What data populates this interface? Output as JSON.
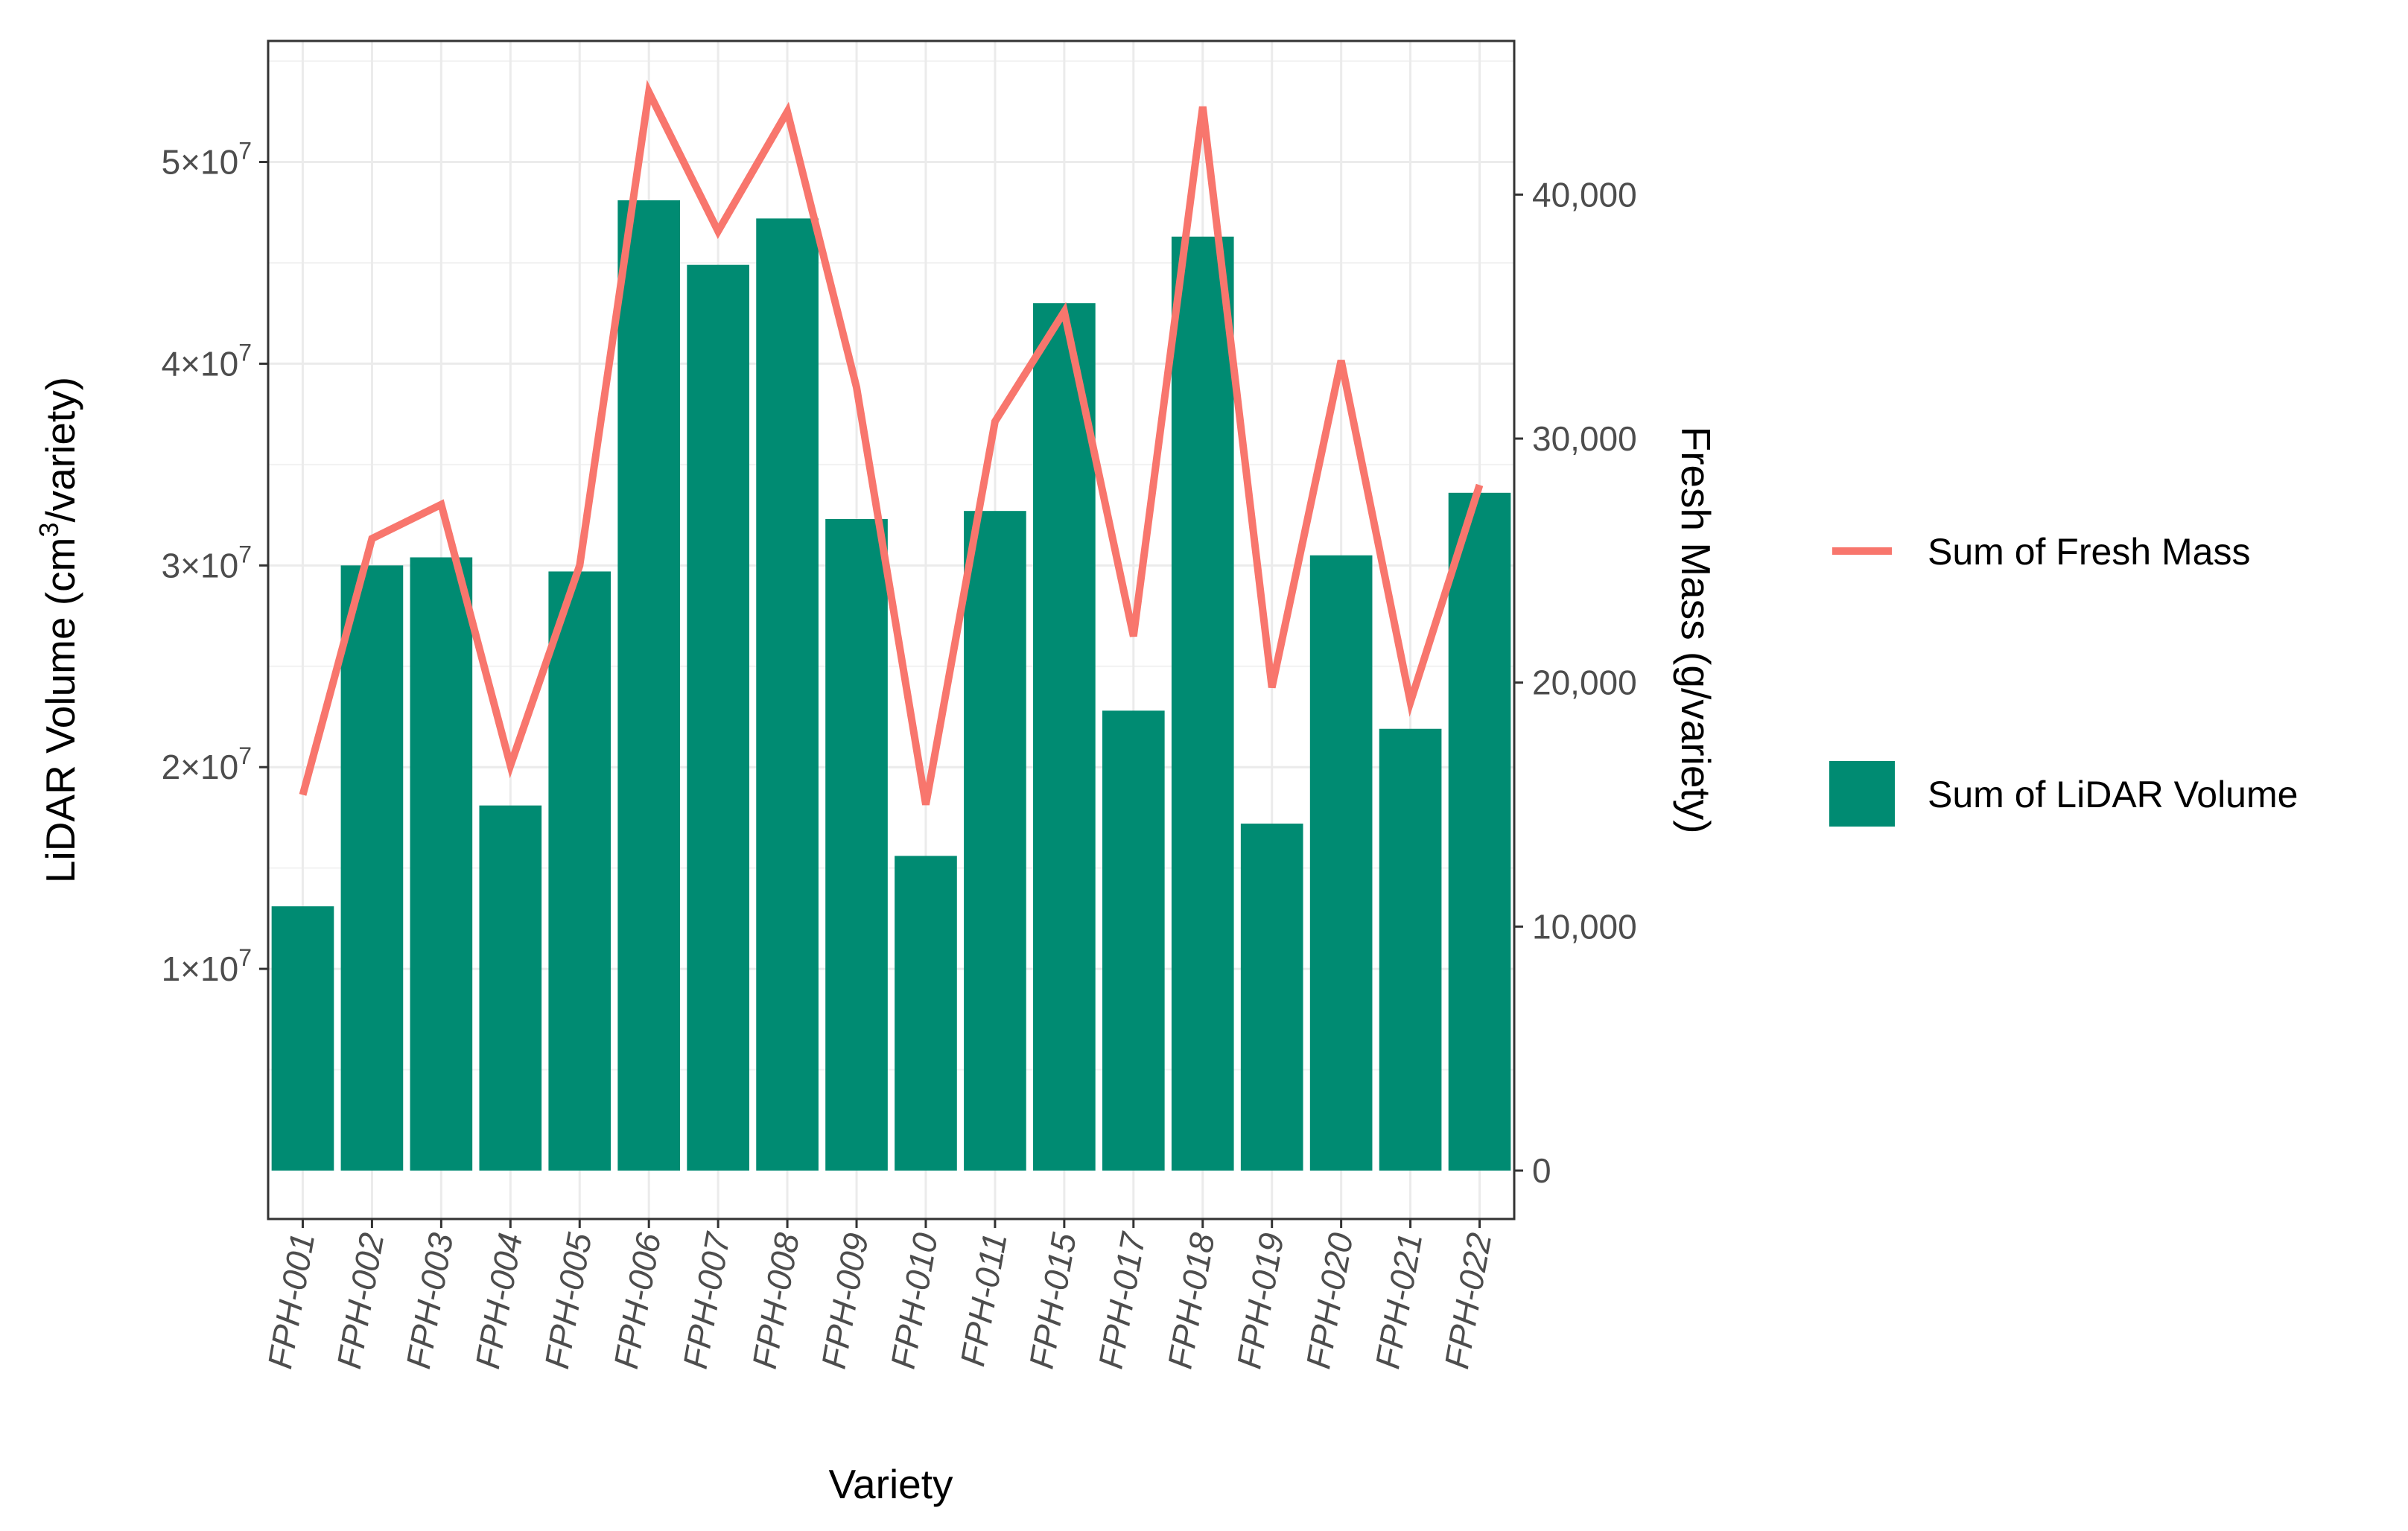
{
  "chart_data": {
    "type": "bar+line",
    "xlabel": "Variety",
    "ylabel_left_prefix": "LiDAR Volume (cm",
    "ylabel_left_sup": "3",
    "ylabel_left_suffix": "/variety)",
    "ylabel_right": "Fresh Mass (g/variety)",
    "categories": [
      "FPH-001",
      "FPH-002",
      "FPH-003",
      "FPH-004",
      "FPH-005",
      "FPH-006",
      "FPH-007",
      "FPH-008",
      "FPH-009",
      "FPH-010",
      "FPH-011",
      "FPH-015",
      "FPH-017",
      "FPH-018",
      "FPH-019",
      "FPH-020",
      "FPH-021",
      "FPH-022"
    ],
    "series": [
      {
        "name": "Sum of LiDAR Volume",
        "kind": "bar",
        "axis": "left",
        "color": "#008B72",
        "values": [
          13100000,
          30000000,
          30400000,
          18100000,
          29700000,
          48100000,
          44900000,
          47200000,
          32300000,
          15600000,
          32700000,
          43000000,
          22800000,
          46300000,
          17200000,
          30500000,
          21900000,
          33600000
        ]
      },
      {
        "name": "Sum of Fresh Mass",
        "kind": "line",
        "axis": "right",
        "color": "#F8766D",
        "values": [
          15400,
          25900,
          27300,
          16600,
          24800,
          44200,
          38500,
          43400,
          32100,
          15000,
          30700,
          35200,
          21900,
          43600,
          19800,
          33200,
          19200,
          28100
        ]
      }
    ],
    "ylim_left": [
      -2400000,
      56000000
    ],
    "yticks_left": [
      {
        "value": 10000000,
        "mant": "1",
        "exp": "7"
      },
      {
        "value": 20000000,
        "mant": "2",
        "exp": "7"
      },
      {
        "value": 30000000,
        "mant": "3",
        "exp": "7"
      },
      {
        "value": 40000000,
        "mant": "4",
        "exp": "7"
      },
      {
        "value": 50000000,
        "mant": "5",
        "exp": "7"
      }
    ],
    "ytick_times": "×10",
    "ylim_right": [
      -1984,
      46297
    ],
    "yticks_right": [
      {
        "value": 0,
        "label": "0"
      },
      {
        "value": 10000,
        "label": "10,000"
      },
      {
        "value": 20000,
        "label": "20,000"
      },
      {
        "value": 30000,
        "label": "30,000"
      },
      {
        "value": 40000,
        "label": "40,000"
      }
    ],
    "grid": true,
    "legend_position": "right",
    "legend": [
      {
        "label": "Sum of Fresh Mass",
        "kind": "line",
        "color": "#F8766D"
      },
      {
        "label": "Sum of LiDAR Volume",
        "kind": "bar",
        "color": "#008B72"
      }
    ]
  }
}
